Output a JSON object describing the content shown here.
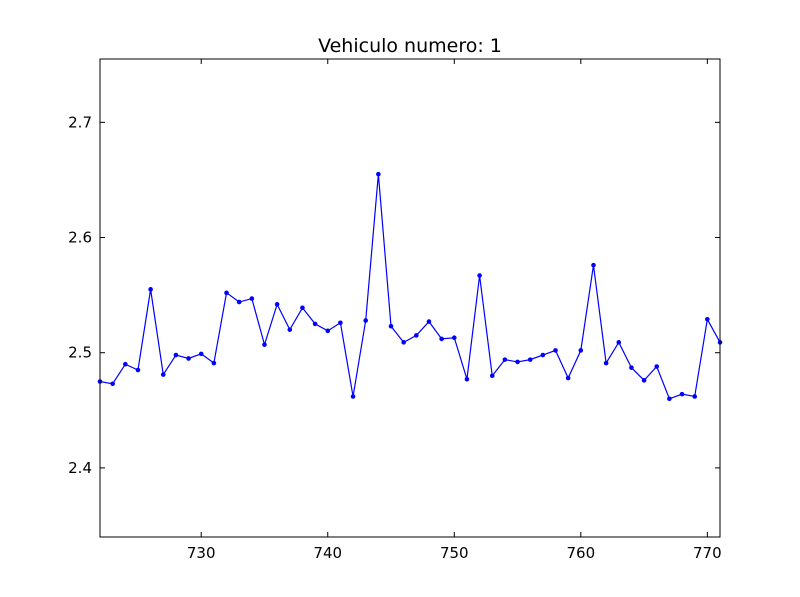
{
  "chart_data": {
    "type": "line",
    "title": "Vehiculo numero: 1",
    "xlabel": "",
    "ylabel": "",
    "xlim": [
      722,
      771
    ],
    "ylim": [
      2.34,
      2.755
    ],
    "xticks": [
      730,
      740,
      750,
      760,
      770
    ],
    "yticks": [
      2.4,
      2.5,
      2.6,
      2.7
    ],
    "xtick_labels": [
      "730",
      "740",
      "750",
      "760",
      "770"
    ],
    "ytick_labels": [
      "2.4",
      "2.5",
      "2.6",
      "2.7"
    ],
    "grid": false,
    "color": "#0000ff",
    "marker": "dot",
    "series": [
      {
        "x": [
          722,
          723,
          724,
          725,
          726,
          727,
          728,
          729,
          730,
          731,
          732,
          733,
          734,
          735,
          736,
          737,
          738,
          739,
          740,
          741,
          742,
          743,
          744,
          745,
          746,
          747,
          748,
          749,
          750,
          751,
          752,
          753,
          754,
          755,
          756,
          757,
          758,
          759,
          760,
          761,
          762,
          763,
          764,
          765,
          766,
          767,
          768,
          769,
          770,
          771
        ],
        "values": [
          2.475,
          2.473,
          2.49,
          2.485,
          2.555,
          2.481,
          2.498,
          2.495,
          2.499,
          2.491,
          2.552,
          2.544,
          2.547,
          2.507,
          2.542,
          2.52,
          2.539,
          2.525,
          2.519,
          2.526,
          2.462,
          2.528,
          2.655,
          2.523,
          2.509,
          2.515,
          2.527,
          2.512,
          2.513,
          2.477,
          2.567,
          2.48,
          2.494,
          2.492,
          2.494,
          2.498,
          2.502,
          2.478,
          2.502,
          2.576,
          2.491,
          2.509,
          2.487,
          2.476,
          2.488,
          2.46,
          2.464,
          2.462,
          2.529,
          2.509
        ]
      }
    ]
  }
}
